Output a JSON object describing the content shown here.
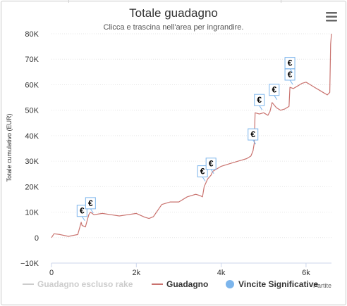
{
  "chart_data": {
    "type": "line",
    "title": "Totale guadagno",
    "subtitle": "Clicca e trascina nell'area per ingrandire.",
    "ylabel": "Totale cumulativo (EUR)",
    "xlabel": "Partite",
    "xlim": [
      0,
      6600
    ],
    "ylim": [
      -10000,
      80000
    ],
    "x_ticks": [
      {
        "value": 0,
        "label": "0"
      },
      {
        "value": 2000,
        "label": "2k"
      },
      {
        "value": 4000,
        "label": "4k"
      },
      {
        "value": 6000,
        "label": "6k"
      }
    ],
    "y_ticks": [
      {
        "value": -10000,
        "label": "−10K"
      },
      {
        "value": 0,
        "label": "0"
      },
      {
        "value": 10000,
        "label": "10K"
      },
      {
        "value": 20000,
        "label": "20K"
      },
      {
        "value": 30000,
        "label": "30K"
      },
      {
        "value": 40000,
        "label": "40K"
      },
      {
        "value": 50000,
        "label": "50K"
      },
      {
        "value": 60000,
        "label": "60K"
      },
      {
        "value": 70000,
        "label": "70K"
      },
      {
        "value": 80000,
        "label": "80K"
      }
    ],
    "series": [
      {
        "name": "Guadagno",
        "color": "#c9726e",
        "x": [
          0,
          60,
          200,
          400,
          550,
          620,
          700,
          720,
          800,
          880,
          920,
          1000,
          1200,
          1400,
          1600,
          1800,
          2000,
          2200,
          2300,
          2400,
          2600,
          2800,
          3000,
          3200,
          3400,
          3500,
          3560,
          3600,
          3680,
          3760,
          3800,
          3900,
          4000,
          4200,
          4400,
          4500,
          4600,
          4700,
          4750,
          4780,
          4800,
          4900,
          5000,
          5100,
          5150,
          5200,
          5250,
          5300,
          5400,
          5500,
          5600,
          5620,
          5700,
          5800,
          5900,
          6000,
          6100,
          6200,
          6300,
          6400,
          6500,
          6560,
          6580,
          6600
        ],
        "y": [
          0,
          1500,
          1200,
          500,
          1000,
          1200,
          6000,
          4800,
          4200,
          9000,
          10000,
          9000,
          9500,
          9000,
          8500,
          9000,
          9500,
          8000,
          7500,
          8200,
          13000,
          14000,
          14000,
          16000,
          17000,
          16500,
          16000,
          20000,
          23000,
          24500,
          26000,
          27000,
          28000,
          29000,
          30000,
          30500,
          31000,
          32000,
          34000,
          37000,
          49000,
          48500,
          49000,
          48000,
          49500,
          53000,
          52000,
          51000,
          50000,
          50500,
          51500,
          59000,
          58500,
          59500,
          60500,
          61000,
          60000,
          59000,
          58000,
          57000,
          56000,
          57000,
          76000,
          80000
        ]
      },
      {
        "name": "Guadagno escluso rake",
        "color": "#cccccc",
        "x": [],
        "y": []
      }
    ],
    "significant_wins": {
      "name": "Vincite Significative",
      "color": "#7cb5ec",
      "symbol": "€",
      "points": [
        {
          "x": 720,
          "y": 10500
        },
        {
          "x": 920,
          "y": 13500
        },
        {
          "x": 3560,
          "y": 26000
        },
        {
          "x": 3760,
          "y": 29000
        },
        {
          "x": 4750,
          "y": 40500
        },
        {
          "x": 4900,
          "y": 54000
        },
        {
          "x": 5250,
          "y": 58000
        },
        {
          "x": 5620,
          "y": 64000
        },
        {
          "x": 5620,
          "y": 68500
        }
      ]
    },
    "grid": true,
    "legend_position": "bottom"
  },
  "ui": {
    "menu_icon": "hamburger-menu-icon"
  }
}
